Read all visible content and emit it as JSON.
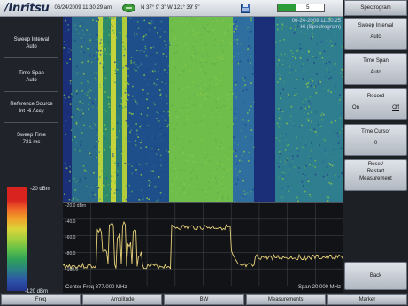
{
  "status_bar": {
    "brand": "/Inritsu",
    "datetime": "06/24/2009 11:30:29 am",
    "coordinates": "N 37° 9' 3\" W 121° 39' 5\"",
    "battery_label": "5",
    "battery_level_pct": 40,
    "icons": [
      "gps-icon",
      "save-icon",
      "battery-icon"
    ]
  },
  "left_panel": {
    "sweep_interval_label": "Sweep Interval",
    "sweep_interval_value": "Auto",
    "time_span_label": "Time Span",
    "time_span_value": "Auto",
    "reference_source_label": "Reference Source",
    "reference_source_value": "Int Hi Accy",
    "sweep_time_label": "Sweep Time",
    "sweep_time_value": "721 ms",
    "scale_top": "-20 dBm",
    "scale_bottom": "-120 dBm"
  },
  "display": {
    "spectrogram_timestamp": "06-24-2009 11:30:25",
    "spectrogram_mode": "Hi (Spectrogram)",
    "ref_levels": [
      "-20.0 dBm",
      "-40.0",
      "-60.0",
      "-80.0",
      "-100.0"
    ],
    "center_freq": "Center Freq 877.000 MHz",
    "span": "Span 20.000 MHz"
  },
  "right_panel": {
    "title": "Spectrogram",
    "sweep_interval_label": "Sweep Interval",
    "sweep_interval_value": "Auto",
    "time_span_label": "Time Span",
    "time_span_value": "Auto",
    "record_label": "Record",
    "record_on": "On",
    "record_off": "Off",
    "time_cursor_label": "Time Cursor",
    "time_cursor_value": "0",
    "reset_line1": "Reset/",
    "reset_line2": "Restart",
    "reset_line3": "Measurement",
    "back_label": "Back"
  },
  "menu_bar": {
    "freq": "Freq",
    "amplitude": "Amplitude",
    "bw": "BW",
    "measurements": "Measurements",
    "marker": "Marker"
  },
  "colors": {
    "spectro_background": "#1b2f78",
    "trace_color": "#e8d27a",
    "scale_high": "#d8231f",
    "scale_low": "#23348f"
  }
}
